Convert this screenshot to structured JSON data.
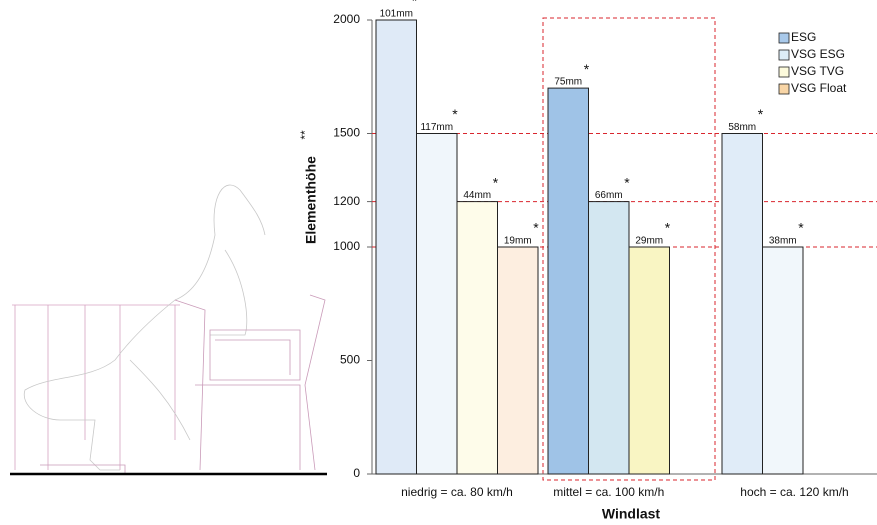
{
  "chart_data": {
    "type": "bar",
    "x_label": "Windlast",
    "y_label": "Elementhöhe",
    "y_label_marker": "**",
    "bar_marker": "*",
    "categories": [
      "niedrig = ca. 80 km/h",
      "mittel = ca. 100 km/h",
      "hoch = ca. 120 km/h"
    ],
    "series": [
      {
        "name": "ESG",
        "color": "#a9c9ea",
        "bar_colors": [
          "#dfeaf7",
          "#9fc3e7",
          "#e0ecf8"
        ],
        "values": [
          2000,
          1700,
          1500
        ],
        "value_labels": [
          "101mm",
          "75mm",
          "58mm"
        ]
      },
      {
        "name": "VSG ESG",
        "color": "#dcedf7",
        "bar_colors": [
          "#f0f6fb",
          "#d3e7f1",
          "#f1f7fb"
        ],
        "values": [
          1500,
          1200,
          1000
        ],
        "value_labels": [
          "117mm",
          "66mm",
          "38mm"
        ]
      },
      {
        "name": "VSG TVG",
        "color": "#fcfadc",
        "bar_colors": [
          "#fefcea",
          "#f9f5c3",
          null
        ],
        "values": [
          1200,
          1000,
          null
        ],
        "value_labels": [
          "44mm",
          "29mm",
          null
        ]
      },
      {
        "name": "VSG Float",
        "color": "#f8d5a6",
        "bar_colors": [
          "#fdeee0",
          null,
          null
        ],
        "values": [
          1000,
          null,
          null
        ],
        "value_labels": [
          "19mm",
          null,
          null
        ]
      }
    ],
    "ylim": [
      0,
      2000
    ],
    "yticks": [
      0,
      500,
      1000,
      1200,
      1500,
      2000
    ],
    "grid_lines": [
      1000,
      1200,
      1500
    ],
    "grid_color": "#d9262e"
  }
}
